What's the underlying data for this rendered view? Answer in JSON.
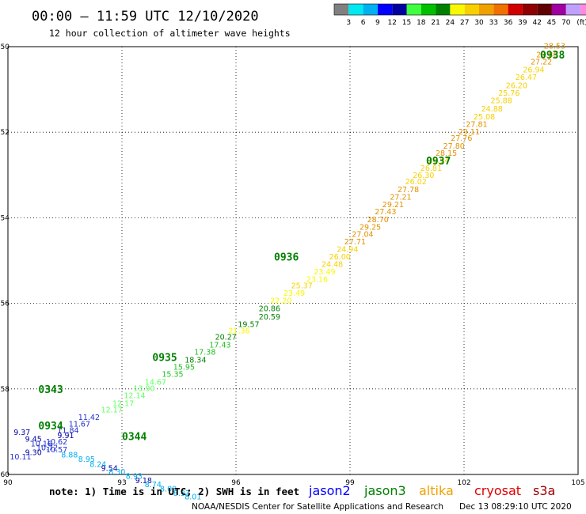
{
  "chart_data": {
    "type": "scatter",
    "title": "00:00 – 11:59 UTC 12/10/2020",
    "subtitle": "12 hour collection of altimeter wave heights",
    "xlim": [
      90,
      105
    ],
    "ylim": [
      -60,
      -50
    ],
    "x_ticks": [
      "90",
      "93",
      "96",
      "99",
      "102",
      "105"
    ],
    "y_ticks": [
      "-50",
      "-52",
      "-54",
      "-56",
      "-58",
      "-60"
    ],
    "grid": true,
    "colorbar": {
      "labels": [
        "3",
        "6",
        "9",
        "12",
        "15",
        "18",
        "21",
        "24",
        "27",
        "30",
        "33",
        "36",
        "39",
        "42",
        "45",
        "70",
        "(ft)"
      ],
      "colors": [
        "#808080",
        "#00e8f0",
        "#00b0f0",
        "#0000ff",
        "#0000a0",
        "#40ff40",
        "#00c000",
        "#008000",
        "#f8f800",
        "#f8d000",
        "#f0a000",
        "#f07000",
        "#d00000",
        "#900000",
        "#600000",
        "#a000a0",
        "#c0a0ff",
        "#ff88dd",
        "#000000"
      ]
    },
    "time_labels": [
      {
        "text": "0938",
        "x": 104.0,
        "y": -50.28
      },
      {
        "text": "0937",
        "x": 101.0,
        "y": -52.75
      },
      {
        "text": "0936",
        "x": 97.0,
        "y": -55.0
      },
      {
        "text": "0935",
        "x": 93.8,
        "y": -57.35
      },
      {
        "text": "0343",
        "x": 90.8,
        "y": -58.1
      },
      {
        "text": "0934",
        "x": 90.8,
        "y": -58.95
      },
      {
        "text": "0344",
        "x": 93.0,
        "y": -59.2
      }
    ],
    "series": [
      {
        "name": "jason3",
        "points": [
          {
            "label": "28.53",
            "x": 104.1,
            "y": -50.05
          },
          {
            "label": "27.80",
            "x": 103.9,
            "y": -50.25
          },
          {
            "label": "27.22",
            "x": 103.75,
            "y": -50.42
          },
          {
            "label": "26.94",
            "x": 103.55,
            "y": -50.6
          },
          {
            "label": "26.47",
            "x": 103.35,
            "y": -50.78
          },
          {
            "label": "26.20",
            "x": 103.1,
            "y": -50.97
          },
          {
            "label": "25.76",
            "x": 102.9,
            "y": -51.15
          },
          {
            "label": "25.88",
            "x": 102.7,
            "y": -51.32
          },
          {
            "label": "24.88",
            "x": 102.45,
            "y": -51.52
          },
          {
            "label": "25.08",
            "x": 102.25,
            "y": -51.7
          },
          {
            "label": "27.81",
            "x": 102.05,
            "y": -51.88
          },
          {
            "label": "29.11",
            "x": 101.85,
            "y": -52.05
          },
          {
            "label": "27.76",
            "x": 101.65,
            "y": -52.2
          },
          {
            "label": "27.80",
            "x": 101.45,
            "y": -52.38
          },
          {
            "label": "28.15",
            "x": 101.25,
            "y": -52.55
          },
          {
            "label": "26.94",
            "x": 101.05,
            "y": -52.72
          },
          {
            "label": "26.81",
            "x": 100.85,
            "y": -52.9
          },
          {
            "label": "26.30",
            "x": 100.65,
            "y": -53.07
          },
          {
            "label": "26.02",
            "x": 100.45,
            "y": -53.22
          },
          {
            "label": "27.78",
            "x": 100.25,
            "y": -53.4
          },
          {
            "label": "27.21",
            "x": 100.05,
            "y": -53.58
          },
          {
            "label": "29.21",
            "x": 99.85,
            "y": -53.75
          },
          {
            "label": "27.43",
            "x": 99.65,
            "y": -53.92
          },
          {
            "label": "28.70",
            "x": 99.45,
            "y": -54.1
          },
          {
            "label": "29.25",
            "x": 99.25,
            "y": -54.28
          },
          {
            "label": "27.04",
            "x": 99.05,
            "y": -54.45
          },
          {
            "label": "27.71",
            "x": 98.85,
            "y": -54.62
          },
          {
            "label": "24.94",
            "x": 98.65,
            "y": -54.8
          },
          {
            "label": "26.00",
            "x": 98.45,
            "y": -54.97
          },
          {
            "label": "24.48",
            "x": 98.25,
            "y": -55.15
          },
          {
            "label": "23.49",
            "x": 98.05,
            "y": -55.32
          },
          {
            "label": "23.16",
            "x": 97.85,
            "y": -55.5
          },
          {
            "label": "25.37",
            "x": 97.45,
            "y": -55.65
          },
          {
            "label": "23.49",
            "x": 97.25,
            "y": -55.82
          },
          {
            "label": "22.20",
            "x": 96.9,
            "y": -56.0
          },
          {
            "label": "20.86",
            "x": 96.6,
            "y": -56.18
          },
          {
            "label": "20.59",
            "x": 96.6,
            "y": -56.38
          },
          {
            "label": "19.57",
            "x": 96.05,
            "y": -56.55
          },
          {
            "label": "21.36",
            "x": 95.8,
            "y": -56.7
          },
          {
            "label": "20.27",
            "x": 95.45,
            "y": -56.85
          },
          {
            "label": "17.43",
            "x": 95.3,
            "y": -57.03
          },
          {
            "label": "17.38",
            "x": 94.9,
            "y": -57.2
          },
          {
            "label": "18.34",
            "x": 94.65,
            "y": -57.38
          },
          {
            "label": "15.95",
            "x": 94.35,
            "y": -57.55
          },
          {
            "label": "15.35",
            "x": 94.05,
            "y": -57.72
          },
          {
            "label": "14.67",
            "x": 93.6,
            "y": -57.9
          },
          {
            "label": "13.90",
            "x": 93.3,
            "y": -58.05
          },
          {
            "label": "12.14",
            "x": 93.05,
            "y": -58.22
          },
          {
            "label": "12.17",
            "x": 92.75,
            "y": -58.4
          },
          {
            "label": "12.17",
            "x": 92.45,
            "y": -58.55
          }
        ]
      },
      {
        "name": "jason2",
        "points": [
          {
            "label": "11.42",
            "x": 91.85,
            "y": -58.72
          },
          {
            "label": "11.67",
            "x": 91.6,
            "y": -58.88
          },
          {
            "label": "11.84",
            "x": 91.3,
            "y": -59.03
          },
          {
            "label": "9.37",
            "x": 90.15,
            "y": -59.08
          },
          {
            "label": "9.91",
            "x": 91.3,
            "y": -59.15
          },
          {
            "label": "9.45",
            "x": 90.45,
            "y": -59.23
          },
          {
            "label": "10.62",
            "x": 91.0,
            "y": -59.3
          },
          {
            "label": "10.16",
            "x": 90.6,
            "y": -59.34
          },
          {
            "label": "10.72",
            "x": 90.75,
            "y": -59.44
          },
          {
            "label": "10.57",
            "x": 91.0,
            "y": -59.48
          },
          {
            "label": "9.30",
            "x": 90.45,
            "y": -59.55
          },
          {
            "label": "10.11",
            "x": 90.05,
            "y": -59.65
          },
          {
            "label": "8.88",
            "x": 91.4,
            "y": -59.6
          },
          {
            "label": "8.95",
            "x": 91.85,
            "y": -59.7
          },
          {
            "label": "8.24",
            "x": 92.15,
            "y": -59.82
          },
          {
            "label": "9.54",
            "x": 92.45,
            "y": -59.92
          },
          {
            "label": "8.30",
            "x": 92.65,
            "y": -60.0
          },
          {
            "label": "8.93",
            "x": 93.1,
            "y": -60.1
          },
          {
            "label": "9.18",
            "x": 93.35,
            "y": -60.2
          },
          {
            "label": "8.74",
            "x": 93.6,
            "y": -60.3
          },
          {
            "label": "8.09",
            "x": 94.0,
            "y": -60.4
          },
          {
            "label": "8.33",
            "x": 94.35,
            "y": -60.5
          },
          {
            "label": "8.01",
            "x": 94.65,
            "y": -60.58
          }
        ]
      }
    ]
  },
  "footer": {
    "note": "note: 1) Time is in UTC; 2) SWH is in feet",
    "satellites": [
      {
        "name": "jason2",
        "color": "#0000ff"
      },
      {
        "name": "jason3",
        "color": "#008000"
      },
      {
        "name": "altika",
        "color": "#f0a000"
      },
      {
        "name": "cryosat",
        "color": "#e00000"
      },
      {
        "name": "s3a",
        "color": "#a00000"
      }
    ],
    "credit": "NOAA/NESDIS Center for Satellite Applications and Research",
    "timestamp": "Dec 13 08:29:10 UTC 2020"
  }
}
